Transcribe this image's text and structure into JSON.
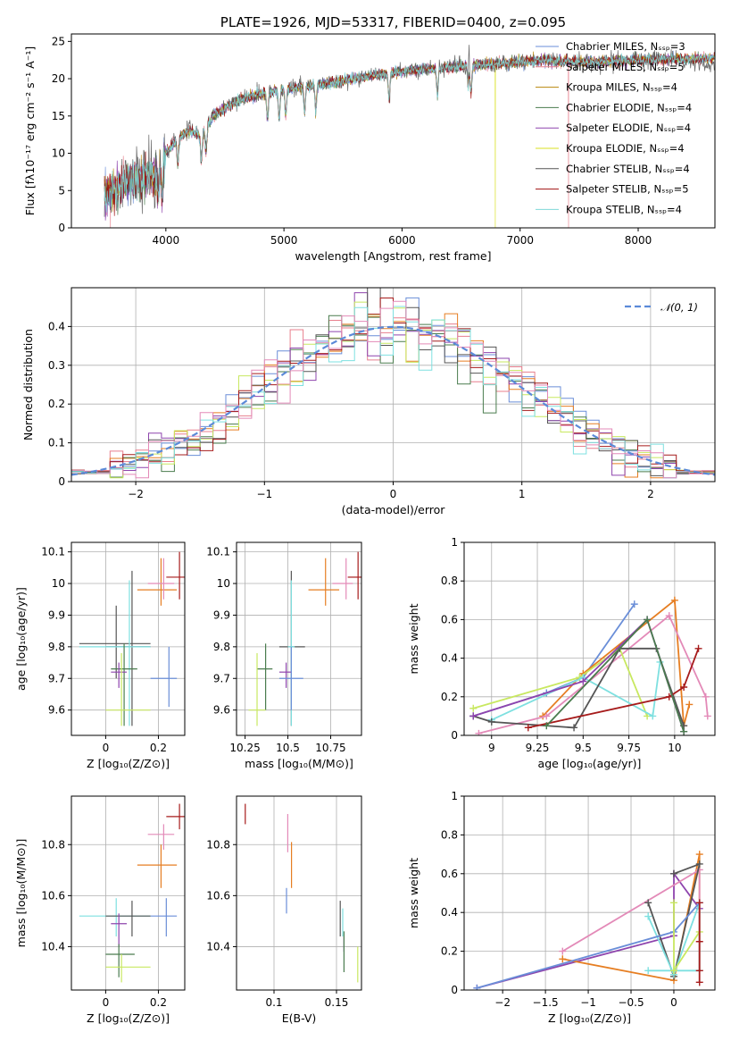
{
  "colors": {
    "Chabrier MILES": "#6a8ed8",
    "Salpeter MILES": "#e87f8d",
    "Kroupa MILES": "#b8860b",
    "Chabrier ELODIE": "#4a7c4e",
    "Salpeter ELODIE": "#8e44ad",
    "Kroupa ELODIE": "#d9e021",
    "Chabrier STELIB": "#555555",
    "Salpeter STELIB": "#a01010",
    "Kroupa STELIB": "#7fd8d8",
    "orange": "#e67e22",
    "pink": "#e38ab8",
    "lime": "#c8e860",
    "cyan": "#7ee0e0",
    "darkred": "#a61b1b"
  },
  "chart_data": [
    {
      "id": "spectrum",
      "type": "line",
      "title": "PLATE=1926, MJD=53317, FIBERID=0400, z=0.095",
      "xlabel": "wavelength [Angstrom, rest frame]",
      "ylabel": "Flux [fλ10⁻¹⁷ erg cm⁻² s⁻¹ A⁻¹]",
      "xlim": [
        3200,
        8650
      ],
      "ylim": [
        0,
        26
      ],
      "xticks": [
        4000,
        5000,
        6000,
        7000,
        8000
      ],
      "yticks": [
        0,
        5,
        10,
        15,
        20,
        25
      ],
      "grid": false,
      "legend_position": "top-right",
      "legend": [
        "Chabrier MILES, Nₛₛₚ=3",
        "Salpeter MILES, Nₛₛₚ=5",
        "Kroupa MILES, Nₛₛₚ=4",
        "Chabrier ELODIE, Nₛₛₚ=4",
        "Salpeter ELODIE, Nₛₛₚ=4",
        "Kroupa ELODIE, Nₛₛₚ=4",
        "Chabrier STELIB, Nₛₛₚ=4",
        "Salpeter STELIB, Nₛₛₚ=5",
        "Kroupa STELIB, Nₛₛₚ=4"
      ],
      "legend_series": [
        "Chabrier MILES",
        "Salpeter MILES",
        "Kroupa MILES",
        "Chabrier ELODIE",
        "Salpeter ELODIE",
        "Kroupa ELODIE",
        "Chabrier STELIB",
        "Salpeter STELIB",
        "Kroupa STELIB"
      ],
      "continuum": {
        "x": [
          3480,
          3600,
          3700,
          3800,
          3900,
          3950,
          4000,
          4100,
          4200,
          4300,
          4400,
          4500,
          4600,
          4800,
          5000,
          5200,
          5400,
          5600,
          5800,
          6000,
          6200,
          6400,
          6600,
          6800,
          7000,
          7200,
          7400,
          7600,
          7800,
          8000,
          8200,
          8400,
          8650
        ],
        "y": [
          4.5,
          5.5,
          6.5,
          6.5,
          7.0,
          7.5,
          10.0,
          12.0,
          13.0,
          12.5,
          15.0,
          16.0,
          17.0,
          18.0,
          18.5,
          19.0,
          19.5,
          20.0,
          20.5,
          21.0,
          21.3,
          21.5,
          21.8,
          22.0,
          22.2,
          22.5,
          22.3,
          22.2,
          22.4,
          22.5,
          22.6,
          22.6,
          22.8
        ]
      },
      "drops": [
        {
          "series": "Salpeter MILES",
          "x": 3530
        },
        {
          "series": "Kroupa ELODIE",
          "x": 6790
        },
        {
          "series": "Salpeter MILES",
          "x": 7410
        }
      ]
    },
    {
      "id": "residuals",
      "type": "line",
      "xlabel": "(data-model)/error",
      "ylabel": "Normed distribution",
      "xlim": [
        -2.5,
        2.5
      ],
      "ylim": [
        0,
        0.5
      ],
      "xticks": [
        -2,
        -1,
        0,
        1,
        2
      ],
      "yticks": [
        0.0,
        0.1,
        0.2,
        0.3,
        0.4
      ],
      "grid": true,
      "legend_position": "top-right",
      "legend": [
        "𝒩(0, 1)"
      ],
      "gaussian": {
        "mean": 0,
        "sigma": 1
      },
      "bin_width": 0.1
    },
    {
      "id": "age-vs-z",
      "type": "scatter",
      "xlabel": "Z [log₁₀(Z/Z⊙)]",
      "ylabel": "age  [log₁₀(age/yr)]",
      "xlim": [
        -0.13,
        0.3
      ],
      "ylim": [
        9.52,
        10.13
      ],
      "xticks": [
        0.0,
        0.2
      ],
      "yticks": [
        9.6,
        9.7,
        9.8,
        9.9,
        10.0,
        10.1
      ],
      "grid": true,
      "points": [
        {
          "c": "Chabrier STELIB",
          "x": 0.04,
          "y": 9.81,
          "xe": [
            -0.1,
            0.17
          ],
          "ye": [
            9.7,
            9.93
          ]
        },
        {
          "c": "Chabrier STELIB",
          "x": 0.1,
          "y": 9.8,
          "xe": [
            0.0,
            0.17
          ],
          "ye": [
            9.55,
            10.04
          ]
        },
        {
          "c": "cyan",
          "x": 0.09,
          "y": 9.8,
          "xe": [
            -0.1,
            0.17
          ],
          "ye": [
            9.55,
            10.01
          ]
        },
        {
          "c": "Chabrier ELODIE",
          "x": 0.07,
          "y": 9.73,
          "xe": [
            0.02,
            0.12
          ],
          "ye": [
            9.55,
            9.81
          ]
        },
        {
          "c": "Salpeter ELODIE",
          "x": 0.05,
          "y": 9.72,
          "xe": [
            0.02,
            0.08
          ],
          "ye": [
            9.67,
            9.75
          ]
        },
        {
          "c": "lime",
          "x": 0.06,
          "y": 9.6,
          "xe": [
            0.0,
            0.17
          ],
          "ye": [
            9.55,
            9.78
          ]
        },
        {
          "c": "Chabrier MILES",
          "x": 0.24,
          "y": 9.7,
          "xe": [
            0.17,
            0.27
          ],
          "ye": [
            9.61,
            9.8
          ]
        },
        {
          "c": "orange",
          "x": 0.21,
          "y": 9.98,
          "xe": [
            0.12,
            0.27
          ],
          "ye": [
            9.93,
            10.08
          ]
        },
        {
          "c": "pink",
          "x": 0.22,
          "y": 10.0,
          "xe": [
            0.16,
            0.26
          ],
          "ye": [
            9.95,
            10.08
          ]
        },
        {
          "c": "darkred",
          "x": 0.28,
          "y": 10.02,
          "xe": [
            0.23,
            0.31
          ],
          "ye": [
            9.95,
            10.1
          ]
        }
      ]
    },
    {
      "id": "age-vs-mass",
      "type": "scatter",
      "xlabel": "mass [log₁₀(M/M⊙)]",
      "ylabel": "",
      "xlim": [
        10.2,
        10.93
      ],
      "ylim": [
        9.52,
        10.13
      ],
      "xticks": [
        10.25,
        10.5,
        10.75
      ],
      "yticks": [
        9.6,
        9.7,
        9.8,
        9.9,
        10.0,
        10.1
      ],
      "grid": true,
      "points": [
        {
          "c": "Chabrier STELIB",
          "x": 10.52,
          "y": 9.8,
          "xe": [
            10.45,
            10.6
          ],
          "ye": [
            9.55,
            10.04
          ]
        },
        {
          "c": "cyan",
          "x": 10.52,
          "y": 9.8,
          "xe": [
            10.5,
            10.54
          ],
          "ye": [
            9.55,
            10.01
          ]
        },
        {
          "c": "Chabrier ELODIE",
          "x": 10.37,
          "y": 9.73,
          "xe": [
            10.32,
            10.41
          ],
          "ye": [
            9.6,
            9.81
          ]
        },
        {
          "c": "Salpeter ELODIE",
          "x": 10.49,
          "y": 9.72,
          "xe": [
            10.45,
            10.52
          ],
          "ye": [
            9.67,
            9.75
          ]
        },
        {
          "c": "lime",
          "x": 10.32,
          "y": 9.6,
          "xe": [
            10.27,
            10.37
          ],
          "ye": [
            9.55,
            9.78
          ]
        },
        {
          "c": "Chabrier MILES",
          "x": 10.52,
          "y": 9.7,
          "xe": [
            10.45,
            10.59
          ],
          "ye": [
            9.6,
            9.8
          ]
        },
        {
          "c": "orange",
          "x": 10.72,
          "y": 9.98,
          "xe": [
            10.62,
            10.8
          ],
          "ye": [
            9.93,
            10.08
          ]
        },
        {
          "c": "pink",
          "x": 10.84,
          "y": 10.0,
          "xe": [
            10.76,
            10.88
          ],
          "ye": [
            9.95,
            10.08
          ]
        },
        {
          "c": "darkred",
          "x": 10.91,
          "y": 10.02,
          "xe": [
            10.85,
            10.93
          ],
          "ye": [
            9.95,
            10.1
          ]
        }
      ]
    },
    {
      "id": "weight-vs-age",
      "type": "line",
      "xlabel": "age  [log₁₀(age/yr)]",
      "ylabel": "mass weight",
      "xlim": [
        8.85,
        10.22
      ],
      "ylim": [
        0,
        1
      ],
      "xticks": [
        9.0,
        9.25,
        9.5,
        9.75,
        10.0
      ],
      "yticks": [
        0.0,
        0.2,
        0.4,
        0.6,
        0.8,
        1.0
      ],
      "grid": true,
      "series": [
        {
          "c": "Chabrier MILES",
          "x": [
            8.9,
            9.3,
            9.5,
            9.78
          ],
          "y": [
            0.1,
            0.22,
            0.3,
            0.68
          ]
        },
        {
          "c": "orange",
          "x": [
            9.28,
            9.5,
            10.0,
            10.05,
            10.08
          ],
          "y": [
            0.1,
            0.32,
            0.7,
            0.05,
            0.16
          ]
        },
        {
          "c": "pink",
          "x": [
            8.93,
            9.3,
            9.97,
            10.17,
            10.18
          ],
          "y": [
            0.01,
            0.1,
            0.62,
            0.2,
            0.1
          ]
        },
        {
          "c": "lime",
          "x": [
            8.9,
            9.48,
            9.7,
            9.85
          ],
          "y": [
            0.14,
            0.3,
            0.45,
            0.1
          ]
        },
        {
          "c": "cyan",
          "x": [
            9.0,
            9.5,
            9.88,
            9.92
          ],
          "y": [
            0.08,
            0.3,
            0.1,
            0.38
          ]
        },
        {
          "c": "Chabrier STELIB",
          "x": [
            8.9,
            9.0,
            9.45,
            9.7,
            9.9,
            10.05
          ],
          "y": [
            0.1,
            0.07,
            0.04,
            0.45,
            0.45,
            0.05
          ]
        },
        {
          "c": "darkred",
          "x": [
            9.2,
            9.97,
            10.05,
            10.13
          ],
          "y": [
            0.04,
            0.2,
            0.25,
            0.45
          ]
        },
        {
          "c": "Salpeter ELODIE",
          "x": [
            8.9,
            9.5,
            9.85,
            10.05
          ],
          "y": [
            0.1,
            0.28,
            0.6,
            0.02
          ]
        },
        {
          "c": "Chabrier ELODIE",
          "x": [
            9.3,
            9.85,
            10.05
          ],
          "y": [
            0.05,
            0.6,
            0.02
          ]
        }
      ]
    },
    {
      "id": "mass-vs-z",
      "type": "scatter",
      "xlabel": "Z [log₁₀(Z/Z⊙)]",
      "ylabel": "mass [log₁₀(M/M⊙)]",
      "xlim": [
        -0.13,
        0.3
      ],
      "ylim": [
        10.23,
        10.99
      ],
      "xticks": [
        0.0,
        0.2
      ],
      "yticks": [
        10.4,
        10.6,
        10.8
      ],
      "grid": true,
      "points": [
        {
          "c": "Chabrier MILES",
          "x": 0.23,
          "y": 10.52,
          "xe": [
            0.17,
            0.27
          ],
          "ye": [
            10.44,
            10.59
          ]
        },
        {
          "c": "cyan",
          "x": 0.04,
          "y": 10.52,
          "xe": [
            -0.1,
            0.17
          ],
          "ye": [
            10.44,
            10.59
          ]
        },
        {
          "c": "Chabrier STELIB",
          "x": 0.1,
          "y": 10.52,
          "xe": [
            0.0,
            0.17
          ],
          "ye": [
            10.44,
            10.58
          ]
        },
        {
          "c": "Salpeter ELODIE",
          "x": 0.05,
          "y": 10.49,
          "xe": [
            0.02,
            0.08
          ],
          "ye": [
            10.4,
            10.53
          ]
        },
        {
          "c": "Chabrier ELODIE",
          "x": 0.05,
          "y": 10.37,
          "xe": [
            0.0,
            0.11
          ],
          "ye": [
            10.28,
            10.41
          ]
        },
        {
          "c": "lime",
          "x": 0.06,
          "y": 10.32,
          "xe": [
            0.0,
            0.17
          ],
          "ye": [
            10.26,
            10.37
          ]
        },
        {
          "c": "orange",
          "x": 0.21,
          "y": 10.72,
          "xe": [
            0.12,
            0.27
          ],
          "ye": [
            10.63,
            10.8
          ]
        },
        {
          "c": "pink",
          "x": 0.22,
          "y": 10.84,
          "xe": [
            0.16,
            0.26
          ],
          "ye": [
            10.78,
            10.88
          ]
        },
        {
          "c": "darkred",
          "x": 0.28,
          "y": 10.91,
          "xe": [
            0.23,
            0.31
          ],
          "ye": [
            10.86,
            10.96
          ]
        }
      ]
    },
    {
      "id": "mass-vs-ebv",
      "type": "scatter",
      "xlabel": "E(B-V)",
      "ylabel": "",
      "xlim": [
        0.07,
        0.17
      ],
      "ylim": [
        10.23,
        10.99
      ],
      "xticks": [
        0.1,
        0.15
      ],
      "yticks": [
        10.4,
        10.6,
        10.8
      ],
      "grid": true,
      "points": [
        {
          "c": "darkred",
          "x": 0.077,
          "y": 10.91,
          "ye": [
            10.88,
            10.96
          ]
        },
        {
          "c": "pink",
          "x": 0.111,
          "y": 10.84,
          "ye": [
            10.77,
            10.92
          ]
        },
        {
          "c": "orange",
          "x": 0.114,
          "y": 10.72,
          "ye": [
            10.63,
            10.81
          ]
        },
        {
          "c": "Chabrier MILES",
          "x": 0.11,
          "y": 10.56,
          "ye": [
            10.53,
            10.63
          ]
        },
        {
          "c": "Chabrier STELIB",
          "x": 0.153,
          "y": 10.48,
          "ye": [
            10.44,
            10.58
          ]
        },
        {
          "c": "cyan",
          "x": 0.155,
          "y": 10.5,
          "ye": [
            10.44,
            10.55
          ]
        },
        {
          "c": "Salpeter ELODIE",
          "x": 0.156,
          "y": 10.42,
          "ye": [
            10.38,
            10.44
          ]
        },
        {
          "c": "Chabrier ELODIE",
          "x": 0.156,
          "y": 10.37,
          "ye": [
            10.3,
            10.46
          ]
        },
        {
          "c": "lime",
          "x": 0.167,
          "y": 10.32,
          "ye": [
            10.26,
            10.4
          ]
        }
      ]
    },
    {
      "id": "weight-vs-z",
      "type": "line",
      "xlabel": "Z [log₁₀(Z/Z⊙)]",
      "ylabel": "mass weight",
      "xlim": [
        -2.45,
        0.48
      ],
      "ylim": [
        0,
        1
      ],
      "xticks": [
        -2.0,
        -1.5,
        -1.0,
        -0.5,
        0.0
      ],
      "yticks": [
        0.0,
        0.2,
        0.4,
        0.6,
        0.8,
        1.0
      ],
      "grid": true,
      "series": [
        {
          "c": "Salpeter ELODIE",
          "x": [
            -2.3,
            0.0,
            0.0,
            0.3
          ],
          "y": [
            0.01,
            0.28,
            0.6,
            0.42
          ]
        },
        {
          "c": "orange",
          "x": [
            -1.3,
            0.0,
            0.3,
            0.3
          ],
          "y": [
            0.16,
            0.05,
            0.7,
            0.1
          ]
        },
        {
          "c": "pink",
          "x": [
            -1.3,
            0.3,
            0.3
          ],
          "y": [
            0.2,
            0.62,
            0.1
          ]
        },
        {
          "c": "Chabrier STELIB",
          "x": [
            -0.3,
            0.0,
            0.3,
            0.0
          ],
          "y": [
            0.45,
            0.07,
            0.65,
            0.6
          ]
        },
        {
          "c": "cyan",
          "x": [
            -0.3,
            0.0,
            0.3,
            0.3,
            -0.3
          ],
          "y": [
            0.38,
            0.08,
            0.45,
            0.1,
            0.1
          ]
        },
        {
          "c": "Chabrier MILES",
          "x": [
            -2.3,
            0.0,
            0.3
          ],
          "y": [
            0.01,
            0.3,
            0.45
          ]
        },
        {
          "c": "lime",
          "x": [
            0.0,
            0.0,
            0.3
          ],
          "y": [
            0.45,
            0.1,
            0.3
          ]
        },
        {
          "c": "darkred",
          "x": [
            0.3,
            0.3,
            0.3,
            0.3
          ],
          "y": [
            0.45,
            0.25,
            0.1,
            0.04
          ]
        }
      ]
    }
  ]
}
